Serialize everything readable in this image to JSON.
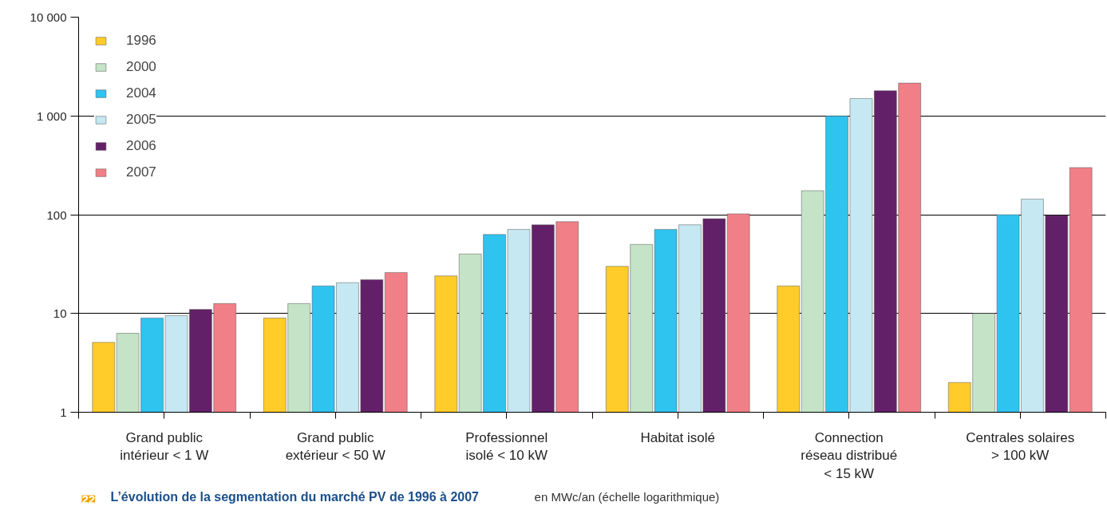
{
  "chart_data": {
    "type": "bar",
    "title": "L’évolution de la segmentation du marché PV  de 1996 à 2007",
    "subtitle": "en MWc/an (échelle logarithmique)",
    "annotations": [
      "22"
    ],
    "categories": [
      "Grand public\nintérieur < 1 W",
      "Grand public\nextérieur < 50 W",
      "Professionnel\nisolé < 10 kW",
      "Habitat isolé",
      "Connection\nréseau distribué\n< 15 kW",
      "Centrales solaires\n> 100 kW"
    ],
    "series": [
      {
        "name": "1996",
        "color": "#ffcc29",
        "values": [
          5.1,
          9,
          24,
          30,
          19,
          2
        ]
      },
      {
        "name": "2000",
        "color": "#c5e3c6",
        "values": [
          6.3,
          12.6,
          40,
          50,
          175,
          10
        ]
      },
      {
        "name": "2004",
        "color": "#2fc3f0",
        "values": [
          9,
          19,
          63,
          71,
          1000,
          100
        ]
      },
      {
        "name": "2005",
        "color": "#c5e8f2",
        "values": [
          9.5,
          20.5,
          71,
          79,
          1500,
          144
        ]
      },
      {
        "name": "2006",
        "color": "#622068",
        "values": [
          11,
          22,
          79,
          91,
          1800,
          98
        ]
      },
      {
        "name": "2007",
        "color": "#f07f87",
        "values": [
          12.6,
          26,
          85,
          102,
          2150,
          300
        ]
      }
    ],
    "log": "y",
    "ylim": [
      1,
      10000
    ],
    "yticks": [
      1,
      10,
      100,
      {
        "value": 1000,
        "label": "1 000"
      },
      {
        "value": 10000,
        "label": "10 000"
      }
    ],
    "grid": "y",
    "legend": "top left"
  }
}
